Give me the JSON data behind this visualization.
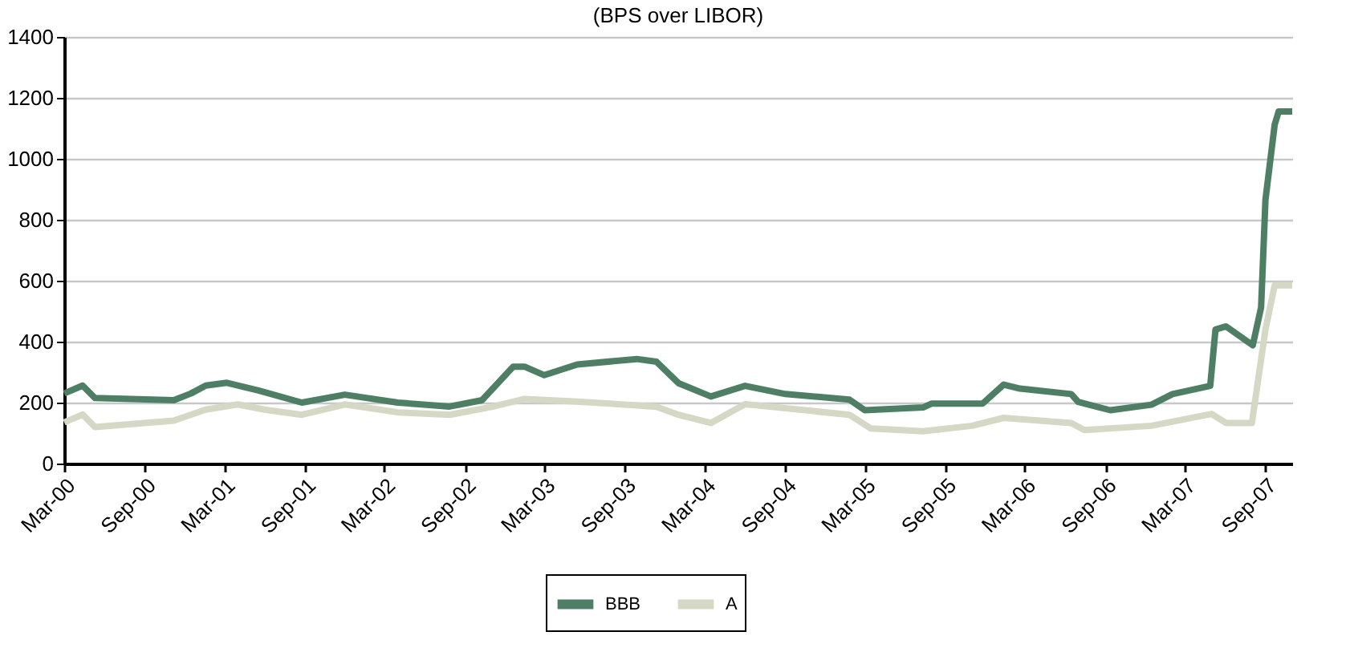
{
  "chart_data": {
    "type": "line",
    "title": "(BPS over LIBOR)",
    "ylim": [
      0,
      1400
    ],
    "yticks": [
      0,
      200,
      400,
      600,
      800,
      1000,
      1200,
      1400
    ],
    "xlim": [
      "2000-03-01",
      "2007-11-01"
    ],
    "xticks": [
      {
        "value": "2000-03-01",
        "label": "Mar-00"
      },
      {
        "value": "2000-09-01",
        "label": "Sep-00"
      },
      {
        "value": "2001-03-01",
        "label": "Mar-01"
      },
      {
        "value": "2001-09-01",
        "label": "Sep-01"
      },
      {
        "value": "2002-03-01",
        "label": "Mar-02"
      },
      {
        "value": "2002-09-01",
        "label": "Sep-02"
      },
      {
        "value": "2003-03-01",
        "label": "Mar-03"
      },
      {
        "value": "2003-09-01",
        "label": "Sep-03"
      },
      {
        "value": "2004-03-01",
        "label": "Mar-04"
      },
      {
        "value": "2004-09-01",
        "label": "Sep-04"
      },
      {
        "value": "2005-03-01",
        "label": "Mar-05"
      },
      {
        "value": "2005-09-01",
        "label": "Sep-05"
      },
      {
        "value": "2006-03-01",
        "label": "Mar-06"
      },
      {
        "value": "2006-09-01",
        "label": "Sep-06"
      },
      {
        "value": "2007-03-01",
        "label": "Mar-07"
      },
      {
        "value": "2007-09-01",
        "label": "Sep-07"
      }
    ],
    "grid": "y",
    "legend": "bottom",
    "marker": "none",
    "line_style": "solid",
    "series": [
      {
        "name": "BBB",
        "color": "#4e7f65",
        "x": [
          "2000-03-01",
          "2000-04-12",
          "2000-05-10",
          "2000-11-06",
          "2000-12-15",
          "2001-01-18",
          "2001-03-07",
          "2001-05-18",
          "2001-08-25",
          "2001-12-01",
          "2002-04-01",
          "2002-07-28",
          "2002-10-10",
          "2002-12-20",
          "2003-01-15",
          "2003-03-01",
          "2003-05-15",
          "2003-09-28",
          "2003-11-12",
          "2004-01-01",
          "2004-03-15",
          "2004-06-01",
          "2004-09-01",
          "2005-01-25",
          "2005-03-01",
          "2005-07-12",
          "2005-08-01",
          "2005-11-25",
          "2006-01-12",
          "2006-02-18",
          "2006-06-15",
          "2006-07-01",
          "2006-09-12",
          "2006-12-15",
          "2007-02-01",
          "2007-04-28",
          "2007-05-10",
          "2007-06-03",
          "2007-08-03",
          "2007-08-22",
          "2007-09-01",
          "2007-09-22",
          "2007-10-01",
          "2007-11-01"
        ],
        "values": [
          230,
          256,
          215,
          208,
          230,
          256,
          265,
          240,
          200,
          226,
          200,
          187,
          208,
          318,
          318,
          290,
          325,
          343,
          334,
          264,
          220,
          255,
          228,
          210,
          175,
          184,
          197,
          197,
          259,
          246,
          228,
          202,
          175,
          193,
          228,
          255,
          440,
          450,
          388,
          512,
          866,
          1112,
          1155,
          1155
        ]
      },
      {
        "name": "A",
        "color": "#d4d8c4",
        "x": [
          "2000-03-01",
          "2000-04-12",
          "2000-05-10",
          "2000-11-06",
          "2001-01-18",
          "2001-04-01",
          "2001-06-01",
          "2001-08-25",
          "2001-12-01",
          "2002-04-01",
          "2002-07-28",
          "2002-11-01",
          "2003-01-15",
          "2003-05-15",
          "2003-09-28",
          "2003-11-12",
          "2004-01-01",
          "2004-03-15",
          "2004-06-01",
          "2005-01-25",
          "2005-03-15",
          "2005-07-12",
          "2005-11-01",
          "2006-01-12",
          "2006-06-15",
          "2006-07-15",
          "2006-12-15",
          "2007-05-01",
          "2007-06-03",
          "2007-08-01",
          "2007-09-01",
          "2007-09-22",
          "2007-11-01"
        ],
        "values": [
          135,
          161,
          120,
          141,
          177,
          194,
          177,
          160,
          194,
          168,
          160,
          186,
          212,
          203,
          191,
          186,
          160,
          133,
          195,
          160,
          115,
          106,
          124,
          150,
          133,
          110,
          124,
          163,
          133,
          133,
          440,
          585,
          585
        ]
      }
    ]
  }
}
